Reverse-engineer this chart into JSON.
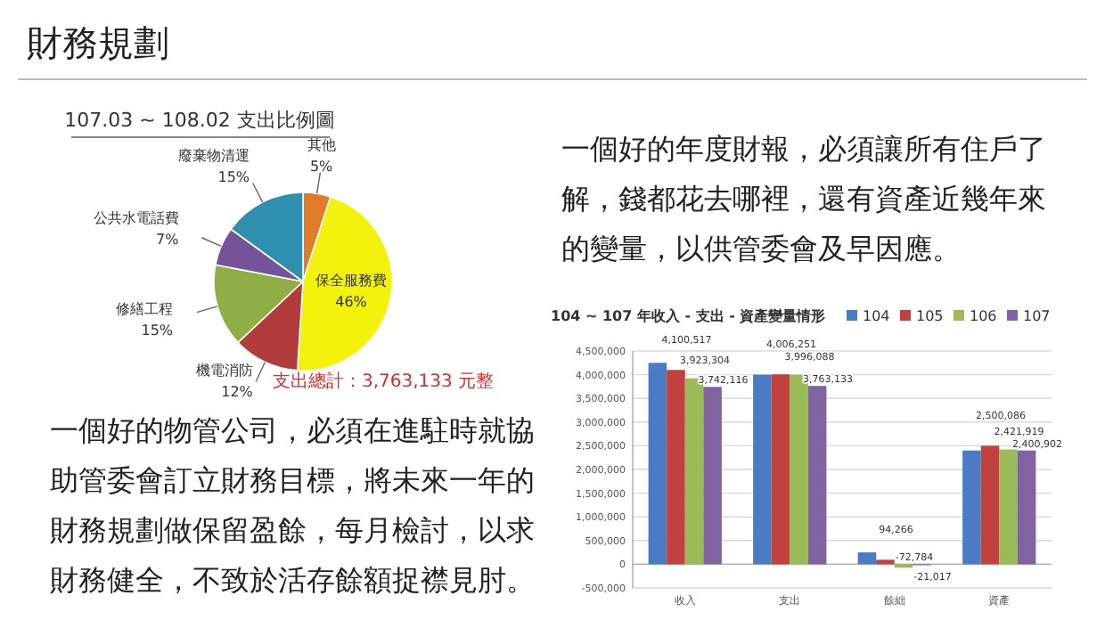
{
  "chart_data": [
    {
      "type": "pie",
      "title": "107.03 ~ 108.02 支出比例圖",
      "categories": [
        "其他",
        "保全服務費",
        "機電消防",
        "修繕工程",
        "公共水電話費",
        "廢棄物清運"
      ],
      "values": [
        5,
        46,
        12,
        15,
        7,
        15
      ],
      "colors": [
        "#e07b2a",
        "#f2f20a",
        "#b23c3c",
        "#8fae45",
        "#74539a",
        "#2e8fae"
      ],
      "value_labels": [
        "5%",
        "46%",
        "12%",
        "15%",
        "7%",
        "15%"
      ],
      "annotations": [
        "支出總計：3,763,133 元整"
      ]
    },
    {
      "type": "bar",
      "title": "104 ~ 107 年收入 - 支出 - 資產變量情形",
      "categories": [
        "收入",
        "支出",
        "餘絀",
        "資產"
      ],
      "series": [
        {
          "name": "104",
          "color": "#4a7cc6",
          "values": [
            4250000,
            4000000,
            250000,
            2400000
          ],
          "value_labels": [
            null,
            null,
            null,
            null
          ]
        },
        {
          "name": "105",
          "color": "#c0413d",
          "values": [
            4100517,
            4006251,
            94266,
            2500086
          ],
          "value_labels": [
            "4,100,517",
            "4,006,251",
            "94,266",
            "2,500,086"
          ]
        },
        {
          "name": "106",
          "color": "#9bbb59",
          "values": [
            3923304,
            3996088,
            -72784,
            2421919
          ],
          "value_labels": [
            "3,923,304",
            "3,996,088",
            "-72,784",
            "2,421,919"
          ]
        },
        {
          "name": "107",
          "color": "#8064a2",
          "values": [
            3742116,
            3763133,
            -21017,
            2400902
          ],
          "value_labels": [
            "3,742,116",
            "3,763,133",
            "-21,017",
            "2,400,902"
          ]
        }
      ],
      "ylim": [
        -500000,
        4500000
      ],
      "yticks": [
        {
          "value": -500000,
          "label": "-500,000"
        },
        {
          "value": 0,
          "label": "0"
        },
        {
          "value": 500000,
          "label": "500,000"
        },
        {
          "value": 1000000,
          "label": "1,000,000"
        },
        {
          "value": 1500000,
          "label": "1,500,000"
        },
        {
          "value": 2000000,
          "label": "2,000,000"
        },
        {
          "value": 2500000,
          "label": "2,500,000"
        },
        {
          "value": 3000000,
          "label": "3,000,000"
        },
        {
          "value": 3500000,
          "label": "3,500,000"
        },
        {
          "value": 4000000,
          "label": "4,000,000"
        },
        {
          "value": 4500000,
          "label": "4,500,000"
        }
      ],
      "grid": "y",
      "legend": "top right"
    },
    {
      "type": "other",
      "title": "財務規劃",
      "annotations": [
        "一個好的年度財報，必須讓所有住戶了解，錢都花去哪裡，還有資產近幾年來的變量，以供管委會及早因應。",
        "一個好的物管公司，必須在進駐時就協助管委會訂立財務目標，將未來一年的財務規劃做保留盈餘，每月檢討，以求財務健全，不致於活存餘額捉襟見肘。"
      ]
    }
  ]
}
